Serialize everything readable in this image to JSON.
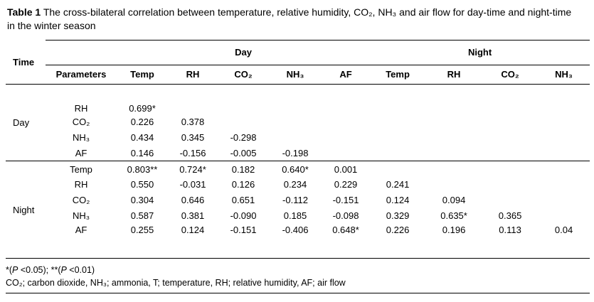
{
  "caption": {
    "label": "Table 1",
    "text": "The cross-bilateral correlation between temperature, relative humidity, CO₂, NH₃ and air flow for day-time and night-time in the winter season"
  },
  "table": {
    "time_header": "Time",
    "param_header": "Parameters",
    "group_headers": [
      "Day",
      "Night"
    ],
    "day_columns": [
      "Temp",
      "RH",
      "CO₂",
      "NH₃",
      "AF"
    ],
    "night_columns": [
      "Temp",
      "RH",
      "CO₂",
      "NH₃"
    ],
    "sections": [
      {
        "time": "Day",
        "rows": [
          {
            "param": "RH",
            "values": [
              "0.699*"
            ]
          },
          {
            "param": "CO₂",
            "values": [
              "0.226",
              "0.378"
            ]
          },
          {
            "param": "NH₃",
            "values": [
              "0.434",
              "0.345",
              "-0.298"
            ]
          },
          {
            "param": "AF",
            "values": [
              "0.146",
              "-0.156",
              "-0.005",
              "-0.198"
            ]
          }
        ]
      },
      {
        "time": "Night",
        "rows": [
          {
            "param": "Temp",
            "values": [
              "0.803**",
              "0.724*",
              "0.182",
              "0.640*",
              "0.001"
            ]
          },
          {
            "param": "RH",
            "values": [
              "0.550",
              "-0.031",
              "0.126",
              "0.234",
              "0.229",
              "0.241"
            ]
          },
          {
            "param": "CO₂",
            "values": [
              "0.304",
              "0.646",
              "0.651",
              "-0.112",
              "-0.151",
              "0.124",
              "0.094"
            ]
          },
          {
            "param": "NH₃",
            "values": [
              "0.587",
              "0.381",
              "-0.090",
              "0.185",
              "-0.098",
              "0.329",
              "0.635*",
              "0.365"
            ]
          },
          {
            "param": "AF",
            "values": [
              "0.255",
              "0.124",
              "-0.151",
              "-0.406",
              "0.648*",
              "0.226",
              "0.196",
              "0.113",
              "0.04"
            ]
          }
        ]
      }
    ],
    "footnotes": [
      "*(P <0.05); **(P <0.01)",
      "CO₂; carbon dioxide, NH₃; ammonia, T; temperature, RH; relative humidity, AF; air flow"
    ]
  }
}
